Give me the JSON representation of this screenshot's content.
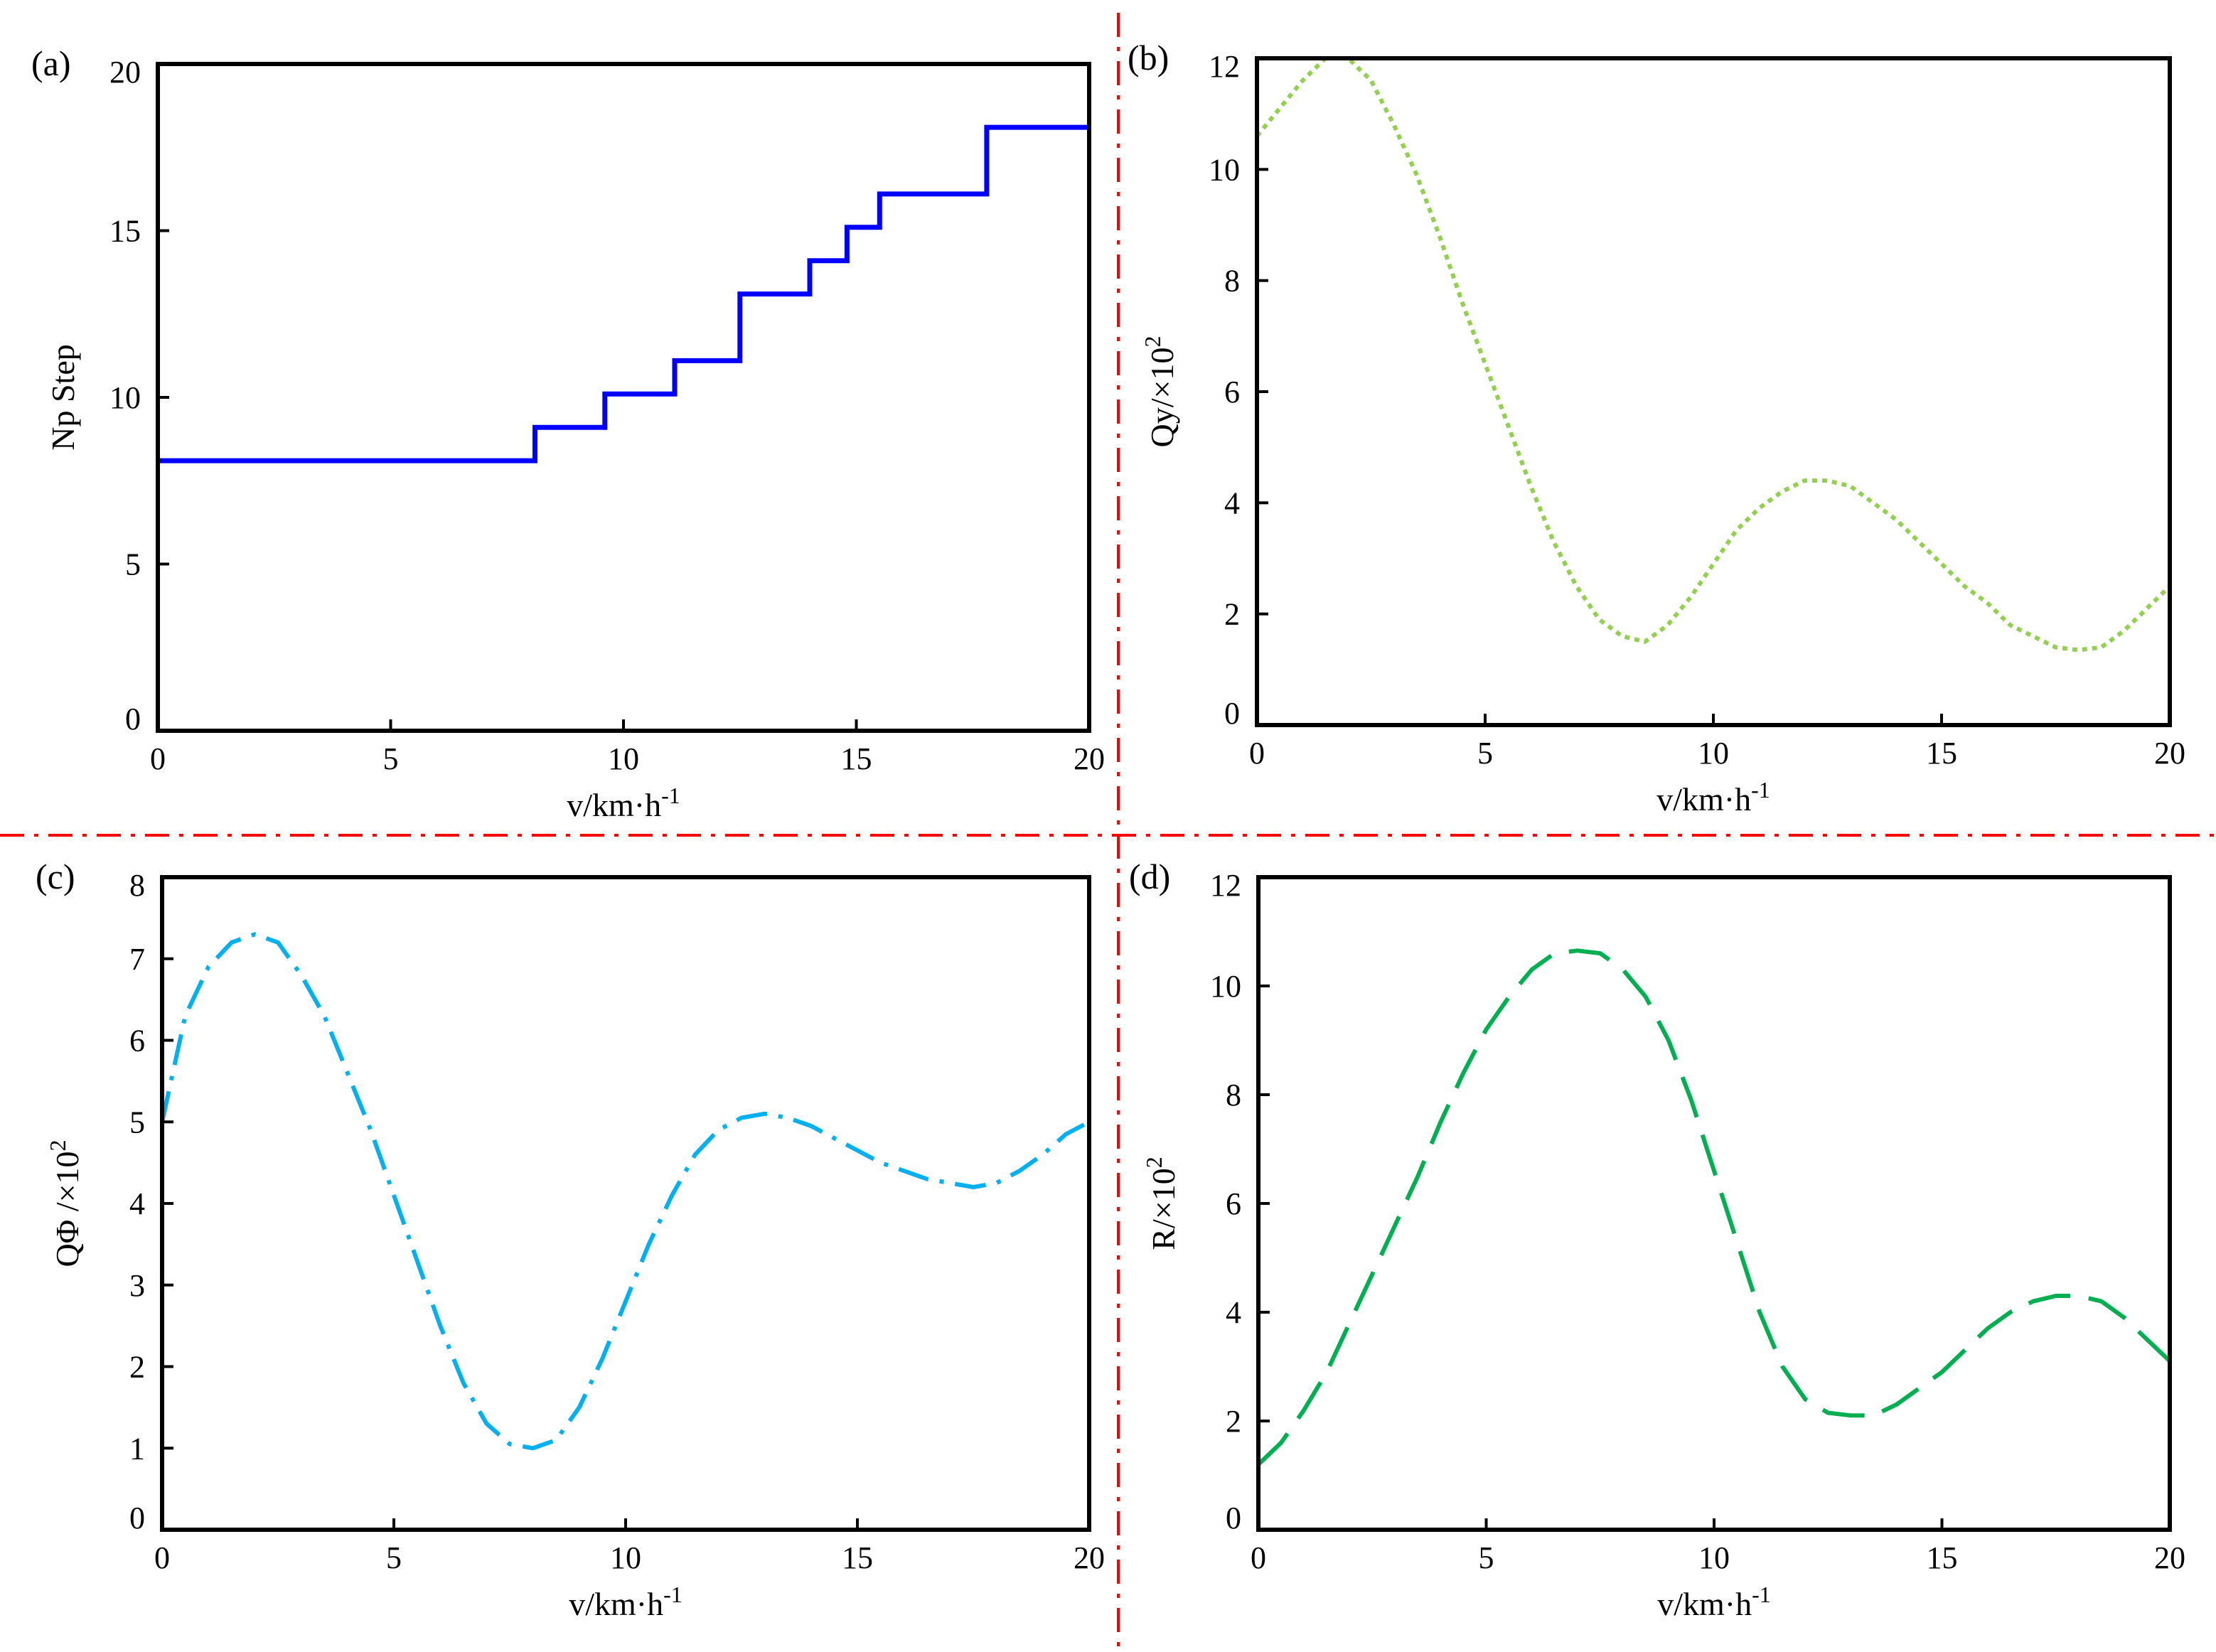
{
  "figure": {
    "separator_color": "#ff0000"
  },
  "chart_data": [
    {
      "id": "a",
      "type": "line",
      "step": true,
      "panel_label": "(a)",
      "title": "",
      "xlabel": "v/km·h",
      "xlabel_sup": "-1",
      "ylabel": "Np Step",
      "ylabel_sup": "",
      "ylabel_tail": "",
      "xlim": [
        0,
        20
      ],
      "ylim": [
        0,
        20
      ],
      "xticks": [
        0,
        5,
        10,
        15,
        20
      ],
      "yticks": [
        0,
        5,
        10,
        15,
        20
      ],
      "color": "#0000ff",
      "dash": "solid",
      "x": [
        0,
        8.1,
        8.1,
        9.6,
        9.6,
        11.1,
        11.1,
        12.5,
        12.5,
        14.0,
        14.0,
        14.8,
        14.8,
        15.5,
        15.5,
        17.8,
        17.8,
        20.0
      ],
      "y": [
        8.1,
        8.1,
        9.1,
        9.1,
        10.1,
        10.1,
        11.1,
        11.1,
        13.1,
        13.1,
        14.1,
        14.1,
        15.1,
        15.1,
        16.1,
        16.1,
        18.1,
        18.1
      ]
    },
    {
      "id": "b",
      "type": "line",
      "step": false,
      "panel_label": "(b)",
      "title": "",
      "xlabel": "v/km·h",
      "xlabel_sup": "-1",
      "ylabel": "Qy/×10",
      "ylabel_sup": "2",
      "ylabel_tail": "",
      "xlim": [
        0,
        20
      ],
      "ylim": [
        0,
        12
      ],
      "xticks": [
        0,
        5,
        10,
        15,
        20
      ],
      "yticks": [
        0,
        2,
        4,
        6,
        8,
        10,
        12
      ],
      "color": "#92d050",
      "dash": "dotted",
      "x": [
        0,
        0.5,
        1,
        1.5,
        2,
        2.5,
        3,
        3.5,
        4,
        4.5,
        5,
        5.5,
        6,
        6.5,
        7,
        7.5,
        8,
        8.5,
        9,
        9.5,
        10,
        10.5,
        11,
        11.5,
        12,
        12.5,
        13,
        13.5,
        14,
        14.5,
        15,
        15.5,
        16,
        16.5,
        17,
        17.5,
        18,
        18.5,
        19,
        19.5,
        20
      ],
      "y": [
        10.6,
        11.1,
        11.6,
        12.0,
        12.0,
        11.6,
        10.8,
        9.9,
        8.8,
        7.6,
        6.5,
        5.4,
        4.3,
        3.3,
        2.5,
        1.9,
        1.6,
        1.5,
        1.8,
        2.3,
        2.9,
        3.5,
        3.9,
        4.2,
        4.4,
        4.4,
        4.3,
        4.0,
        3.7,
        3.3,
        2.9,
        2.5,
        2.2,
        1.8,
        1.6,
        1.4,
        1.35,
        1.4,
        1.7,
        2.1,
        2.5
      ]
    },
    {
      "id": "c",
      "type": "line",
      "step": false,
      "panel_label": "(c)",
      "title": "",
      "xlabel": "v/km·h",
      "xlabel_sup": "-1",
      "ylabel": "QΦ /×10",
      "ylabel_sup": "2",
      "ylabel_tail": "",
      "xlim": [
        0,
        20
      ],
      "ylim": [
        0,
        8
      ],
      "xticks": [
        0,
        5,
        10,
        15,
        20
      ],
      "yticks": [
        0,
        1,
        2,
        3,
        4,
        5,
        6,
        7,
        8
      ],
      "color": "#00b0f0",
      "dash": "dashdot",
      "x": [
        0,
        0.5,
        1,
        1.5,
        2,
        2.5,
        3,
        3.5,
        4,
        4.5,
        5,
        5.5,
        6,
        6.5,
        7,
        7.5,
        8,
        8.5,
        9,
        9.5,
        10,
        10.5,
        11,
        11.5,
        12,
        12.5,
        13,
        13.5,
        14,
        14.5,
        15,
        15.5,
        16,
        16.5,
        17,
        17.5,
        18,
        18.5,
        19,
        19.5,
        20
      ],
      "y": [
        5.0,
        6.3,
        6.9,
        7.2,
        7.3,
        7.2,
        6.8,
        6.3,
        5.6,
        4.9,
        4.1,
        3.3,
        2.5,
        1.8,
        1.3,
        1.05,
        1.0,
        1.1,
        1.5,
        2.1,
        2.8,
        3.5,
        4.1,
        4.6,
        4.9,
        5.05,
        5.1,
        5.05,
        4.95,
        4.8,
        4.65,
        4.5,
        4.4,
        4.3,
        4.25,
        4.2,
        4.25,
        4.4,
        4.6,
        4.85,
        5.0
      ]
    },
    {
      "id": "d",
      "type": "line",
      "step": false,
      "panel_label": "(d)",
      "title": "",
      "xlabel": "v/km·h",
      "xlabel_sup": "-1",
      "ylabel": "R/×10",
      "ylabel_sup": "2",
      "ylabel_tail": "",
      "xlim": [
        0,
        20
      ],
      "ylim": [
        0,
        12
      ],
      "xticks": [
        0,
        5,
        10,
        15,
        20
      ],
      "yticks": [
        0,
        2,
        4,
        6,
        8,
        10,
        12
      ],
      "color": "#00b050",
      "dash": "dashed",
      "x": [
        0,
        0.5,
        1,
        1.5,
        2,
        2.5,
        3,
        3.5,
        4,
        4.5,
        5,
        5.5,
        6,
        6.5,
        7,
        7.5,
        8,
        8.5,
        9,
        9.5,
        10,
        10.5,
        11,
        11.5,
        12,
        12.5,
        13,
        13.5,
        14,
        14.5,
        15,
        15.5,
        16,
        16.5,
        17,
        17.5,
        18,
        18.5,
        19,
        19.5,
        20
      ],
      "y": [
        1.2,
        1.6,
        2.2,
        2.9,
        3.8,
        4.7,
        5.6,
        6.5,
        7.5,
        8.4,
        9.2,
        9.8,
        10.3,
        10.6,
        10.65,
        10.6,
        10.3,
        9.8,
        9.0,
        7.9,
        6.6,
        5.3,
        4.0,
        3.0,
        2.4,
        2.15,
        2.1,
        2.1,
        2.3,
        2.6,
        2.9,
        3.3,
        3.7,
        4.0,
        4.2,
        4.3,
        4.3,
        4.2,
        3.9,
        3.5,
        3.1
      ]
    }
  ]
}
